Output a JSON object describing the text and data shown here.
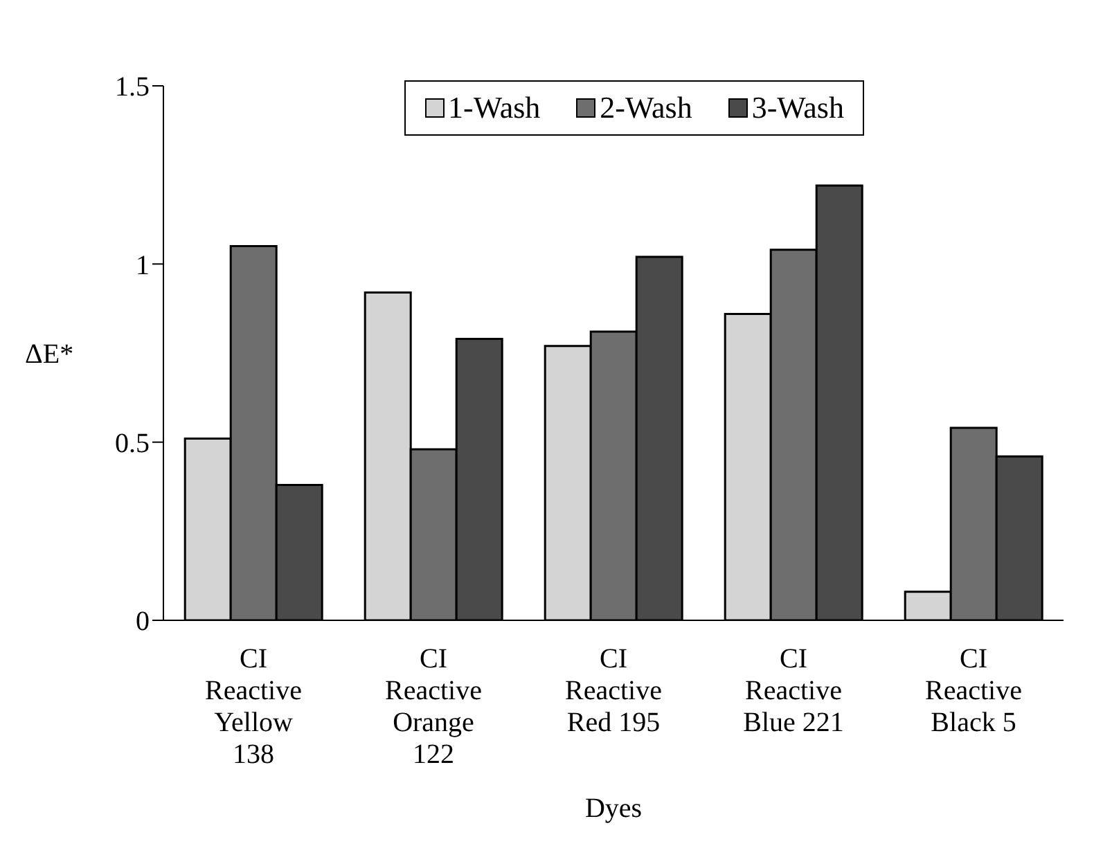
{
  "chart_data": {
    "type": "bar",
    "xlabel": "Dyes",
    "ylabel": "ΔE*",
    "categories": [
      "CI Reactive Yellow 138",
      "CI Reactive Orange 122",
      "CI Reactive Red 195",
      "CI Reactive Blue 221",
      "CI Reactive Black 5"
    ],
    "series": [
      {
        "name": "1-Wash",
        "color": "#d4d4d4",
        "values": [
          0.51,
          0.92,
          0.77,
          0.86,
          0.08
        ]
      },
      {
        "name": "2-Wash",
        "color": "#6e6e6e",
        "values": [
          1.05,
          0.48,
          0.81,
          1.04,
          0.54
        ]
      },
      {
        "name": "3-Wash",
        "color": "#4a4a4a",
        "values": [
          0.38,
          0.79,
          1.02,
          1.22,
          0.46
        ]
      }
    ],
    "ylim": [
      0,
      1.5
    ],
    "yticks": [
      0,
      0.5,
      1,
      1.5
    ],
    "grid": false,
    "legend": "top"
  }
}
